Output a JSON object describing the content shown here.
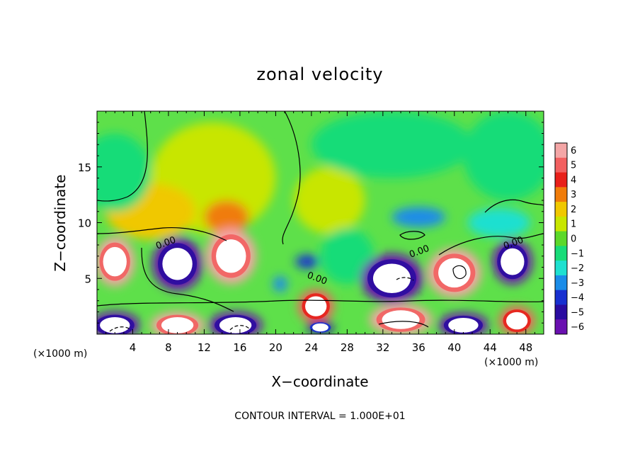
{
  "chart_data": {
    "type": "heatmap",
    "title": "zonal velocity",
    "xlabel": "X−coordinate",
    "ylabel": "Z−coordinate",
    "x_unit_left": "(×1000 m)",
    "x_unit_right": "(×1000 m)",
    "footer": "CONTOUR INTERVAL = 1.000E+01",
    "xlim": [
      0,
      50
    ],
    "ylim": [
      0,
      20
    ],
    "x_ticks": [
      4,
      8,
      12,
      16,
      20,
      24,
      28,
      32,
      36,
      40,
      44,
      48
    ],
    "x_tick_labels": [
      "4",
      "8",
      "12",
      "16",
      "20",
      "24",
      "28",
      "32",
      "36",
      "40",
      "44",
      "48"
    ],
    "y_ticks": [
      5,
      10,
      15
    ],
    "y_tick_labels": [
      "5",
      "10",
      "15"
    ],
    "colorbar": {
      "levels": [
        6,
        5,
        4,
        3,
        2,
        1,
        0,
        -1,
        -2,
        -3,
        -4,
        -5,
        -6
      ],
      "labels": [
        "6",
        "5",
        "4",
        "3",
        "2",
        "1",
        "0",
        "−1",
        "−2",
        "−3",
        "−4",
        "−5",
        "−6"
      ],
      "colors": [
        "#f4a6a6",
        "#f26060",
        "#e8201a",
        "#f07c0a",
        "#f0c800",
        "#c8e600",
        "#5cd82a",
        "#18dc78",
        "#1ee0d0",
        "#1a8ce8",
        "#1830d0",
        "#2a0ca0",
        "#6a10b0"
      ]
    },
    "contour_labels": [
      "0.00",
      "0.00",
      "0.00",
      "0.00"
    ],
    "background_color": "#5ee04a",
    "features": [
      {
        "x": 2,
        "y": 6.5,
        "value": 6,
        "rx": 2.2,
        "ry": 2.2
      },
      {
        "x": 9,
        "y": 6.3,
        "value": -6,
        "rx": 2.8,
        "ry": 2.4
      },
      {
        "x": 15,
        "y": 7,
        "value": 6,
        "rx": 2.8,
        "ry": 2.5
      },
      {
        "x": 33,
        "y": 5,
        "value": -6,
        "rx": 3.5,
        "ry": 2.2
      },
      {
        "x": 40,
        "y": 5.5,
        "value": 6,
        "rx": 3,
        "ry": 2.2
      },
      {
        "x": 46.5,
        "y": 6.5,
        "value": -6,
        "rx": 2.2,
        "ry": 2
      },
      {
        "x": 2,
        "y": 0.8,
        "value": -6,
        "rx": 2.8,
        "ry": 1.2
      },
      {
        "x": 9,
        "y": 0.8,
        "value": 6,
        "rx": 3,
        "ry": 1.2
      },
      {
        "x": 15.5,
        "y": 0.8,
        "value": -6,
        "rx": 3,
        "ry": 1.2
      },
      {
        "x": 24.5,
        "y": 2.5,
        "value": 5,
        "rx": 2,
        "ry": 1.5
      },
      {
        "x": 25,
        "y": 0.6,
        "value": -5,
        "rx": 1.5,
        "ry": 0.6
      },
      {
        "x": 34,
        "y": 1.3,
        "value": 6,
        "rx": 3.5,
        "ry": 1.4
      },
      {
        "x": 41,
        "y": 0.8,
        "value": -6,
        "rx": 2.8,
        "ry": 1.1
      },
      {
        "x": 47,
        "y": 1.2,
        "value": 5,
        "rx": 2,
        "ry": 1.3
      },
      {
        "x": 23.5,
        "y": 6.5,
        "value": -4,
        "rx": 1.3,
        "ry": 0.6
      },
      {
        "x": 20.5,
        "y": 4.5,
        "value": -3,
        "rx": 0.8,
        "ry": 0.7
      },
      {
        "x": 36,
        "y": 10.5,
        "value": -3,
        "rx": 3,
        "ry": 0.9
      },
      {
        "x": 45,
        "y": 10,
        "value": -2.5,
        "rx": 3.5,
        "ry": 1.3
      },
      {
        "x": 14.5,
        "y": 10.5,
        "value": 3,
        "rx": 2.5,
        "ry": 1.5
      },
      {
        "x": 6,
        "y": 11,
        "value": 1.5,
        "rx": 5,
        "ry": 2.5
      },
      {
        "x": 13,
        "y": 14,
        "value": 1,
        "rx": 7,
        "ry": 5
      },
      {
        "x": 2,
        "y": 14.5,
        "value": -1.5,
        "rx": 4,
        "ry": 3.5
      },
      {
        "x": 33,
        "y": 17,
        "value": -1.2,
        "rx": 9,
        "ry": 3
      },
      {
        "x": 46,
        "y": 16,
        "value": -1.2,
        "rx": 5,
        "ry": 4
      },
      {
        "x": 28,
        "y": 7,
        "value": -1,
        "rx": 3,
        "ry": 2.5
      },
      {
        "x": 26,
        "y": 12,
        "value": 0.6,
        "rx": 4,
        "ry": 3
      }
    ]
  }
}
